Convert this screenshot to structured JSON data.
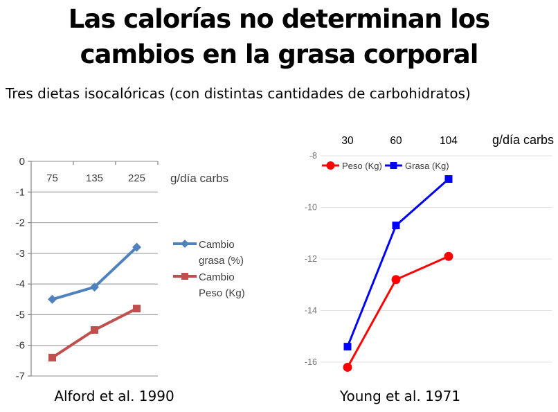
{
  "slide": {
    "title_line1": "Las calorías no determinan los",
    "title_line2": "cambios en la grasa corporal",
    "subtitle": "Tres dietas isocalóricas (con distintas cantidades de carbohidratos)",
    "background_color": "#ffffff",
    "text_color": "#000000"
  },
  "chart_data": [
    {
      "type": "line",
      "caption": "Alford et al. 1990",
      "x_axis_label": "g/día carbs",
      "x_axis_position": "top",
      "categories": [
        "75",
        "135",
        "225"
      ],
      "yticks": [
        0,
        -1,
        -2,
        -3,
        -4,
        -5,
        -6,
        -7
      ],
      "ylim": [
        -7,
        0
      ],
      "grid": true,
      "grid_color": "#A3A3A3",
      "axis_color": "#808080",
      "tick_label_color": "#3F3F3F",
      "legend_position": "right",
      "series": [
        {
          "name": "Cambio grasa (%)",
          "legend_lines": [
            "Cambio",
            "grasa (%)"
          ],
          "color": "#4F81BD",
          "marker": "diamond",
          "values": [
            -4.5,
            -4.1,
            -2.8
          ]
        },
        {
          "name": "Cambio Peso (Kg)",
          "legend_lines": [
            "Cambio",
            "Peso (Kg)"
          ],
          "color": "#C0504D",
          "marker": "square",
          "values": [
            -6.4,
            -5.5,
            -4.8
          ]
        }
      ]
    },
    {
      "type": "line",
      "caption": "Young et al. 1971",
      "x_axis_label": "g/día carbs",
      "x_axis_position": "top",
      "categories": [
        "30",
        "60",
        "104"
      ],
      "yticks": [
        -8,
        -10,
        -12,
        -14,
        -16
      ],
      "ylim": [
        -16.8,
        -8
      ],
      "grid": true,
      "grid_color": "#E0E0E0",
      "tick_label_color": "#757575",
      "x_label_color": "#000000",
      "legend_position": "top-inside",
      "series": [
        {
          "name": "Peso (Kg)",
          "legend_lines": [
            "Peso (Kg)"
          ],
          "color": "#FF0000",
          "marker": "circle",
          "values": [
            -16.2,
            -12.8,
            -11.9
          ]
        },
        {
          "name": "Grasa (Kg)",
          "legend_lines": [
            "Grasa (Kg)"
          ],
          "color": "#0000FF",
          "marker": "square",
          "values": [
            -15.4,
            -10.7,
            -8.9
          ]
        }
      ]
    }
  ]
}
